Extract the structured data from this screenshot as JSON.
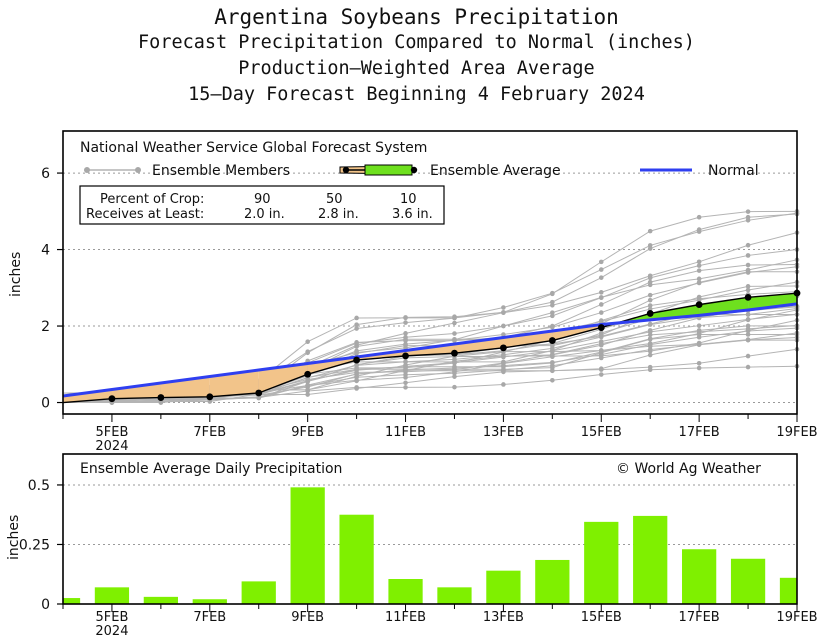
{
  "titles": {
    "line1": "Argentina Soybeans Precipitation",
    "line2": "Forecast Precipitation Compared to Normal (inches)",
    "line3": "Production—Weighted Area Average",
    "line4": "15—Day Forecast Beginning 4 February 2024"
  },
  "colors": {
    "normal": "#2f3ff0",
    "above_fill": "#6ee01e",
    "below_fill": "#f2c48a",
    "members": "#b4b4b4",
    "bars": "#7ff000"
  },
  "top_panel": {
    "source": "National Weather Service Global Forecast System",
    "legend": {
      "members": "Ensemble Members",
      "average": "Ensemble Average",
      "normal": "Normal"
    },
    "crop_table": {
      "row1": [
        "Percent of Crop:",
        "90",
        "50",
        "10"
      ],
      "row2": [
        "Receives at Least:",
        "2.0 in.",
        "2.8 in.",
        "3.6 in."
      ]
    }
  },
  "bottom_panel": {
    "title": "Ensemble Average Daily Precipitation",
    "credit": "© World Ag Weather"
  },
  "chart_data": [
    {
      "type": "line",
      "title": "Forecast Precipitation Compared to Normal (inches)",
      "ylabel": "inches",
      "xlabel": "",
      "xlim": [
        4,
        19
      ],
      "ylim": [
        -0.3,
        7.1
      ],
      "yticks": [
        0,
        2,
        4,
        6
      ],
      "xticks": [
        5,
        7,
        9,
        11,
        13,
        15,
        17,
        19
      ],
      "xtick_labels": [
        "5FEB",
        "7FEB",
        "9FEB",
        "11FEB",
        "13FEB",
        "15FEB",
        "17FEB",
        "19FEB"
      ],
      "year_label": "2024",
      "grid": true,
      "legend": "top-left",
      "x": [
        4,
        5,
        6,
        7,
        8,
        9,
        10,
        11,
        12,
        13,
        14,
        15,
        16,
        17,
        18,
        19
      ],
      "ensemble_average": [
        0.0,
        0.1,
        0.13,
        0.15,
        0.25,
        0.74,
        1.11,
        1.22,
        1.29,
        1.43,
        1.62,
        1.96,
        2.33,
        2.56,
        2.75,
        2.86
      ],
      "normal": [
        0.17,
        0.34,
        0.51,
        0.68,
        0.85,
        1.02,
        1.19,
        1.36,
        1.53,
        1.7,
        1.87,
        2.04,
        2.16,
        2.28,
        2.42,
        2.58
      ],
      "member_finals": [
        5.2,
        5.0,
        4.9,
        4.3,
        4.0,
        3.8,
        3.7,
        3.5,
        3.3,
        3.1,
        3.0,
        2.9,
        2.8,
        2.7,
        2.6,
        2.5,
        2.45,
        2.4,
        2.3,
        2.2,
        2.1,
        2.0,
        1.95,
        1.9,
        1.85,
        1.8,
        1.7,
        1.5,
        1.3,
        1.0
      ]
    },
    {
      "type": "bar",
      "title": "Ensemble Average Daily Precipitation",
      "ylabel": "inches",
      "xlim": [
        4,
        19
      ],
      "ylim": [
        0,
        0.63
      ],
      "yticks": [
        0,
        0.25,
        0.5
      ],
      "ytick_labels": [
        "0",
        "0.25",
        "0.5"
      ],
      "xticks": [
        5,
        7,
        9,
        11,
        13,
        15,
        17,
        19
      ],
      "xtick_labels": [
        "5FEB",
        "7FEB",
        "9FEB",
        "11FEB",
        "13FEB",
        "15FEB",
        "17FEB",
        "19FEB"
      ],
      "year_label": "2024",
      "x": [
        4,
        5,
        6,
        7,
        8,
        9,
        10,
        11,
        12,
        13,
        14,
        15,
        16,
        17,
        18,
        19
      ],
      "values": [
        0.025,
        0.07,
        0.03,
        0.02,
        0.095,
        0.49,
        0.375,
        0.105,
        0.07,
        0.14,
        0.185,
        0.345,
        0.37,
        0.23,
        0.19,
        0.11
      ]
    }
  ]
}
